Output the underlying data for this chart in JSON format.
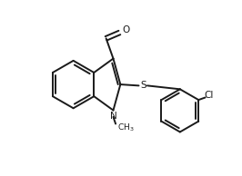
{
  "background_color": "#ffffff",
  "line_color": "#1a1a1a",
  "line_width": 1.4,
  "figsize": [
    2.66,
    1.94
  ],
  "dpi": 100,
  "xlim": [
    0,
    10
  ],
  "ylim": [
    0,
    7.3
  ]
}
